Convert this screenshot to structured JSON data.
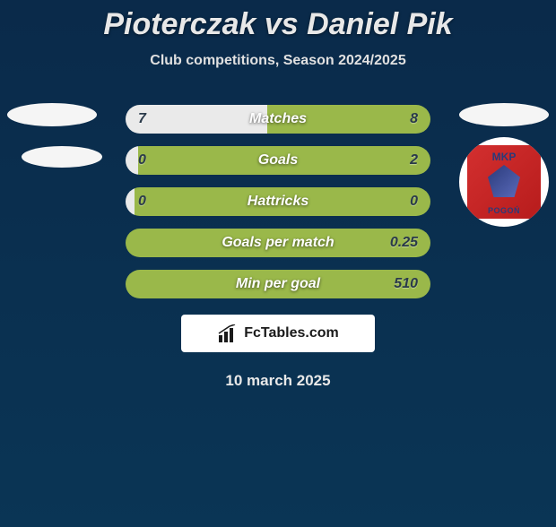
{
  "header": {
    "title": "Pioterczak vs Daniel Pik",
    "subtitle": "Club competitions, Season 2024/2025"
  },
  "badges": {
    "left": {
      "ellipse_color": "#f5f5f5"
    },
    "right": {
      "ellipse_color": "#f5f5f5",
      "club_top": "MKP",
      "club_bottom": "POGOŃ",
      "club_bg": "#d32f2f",
      "club_text_color": "#2a3a7a"
    }
  },
  "stats": {
    "rows": [
      {
        "label": "Matches",
        "left": "7",
        "right": "8",
        "left_pct": 46.6
      },
      {
        "label": "Goals",
        "left": "0",
        "right": "2",
        "left_pct": 4
      },
      {
        "label": "Hattricks",
        "left": "0",
        "right": "0",
        "left_pct": 3
      },
      {
        "label": "Goals per match",
        "left": "",
        "right": "0.25",
        "left_pct": 0
      },
      {
        "label": "Min per goal",
        "left": "",
        "right": "510",
        "left_pct": 0
      }
    ],
    "bar_left_color": "#eaeaea",
    "bar_right_color": "#9ab84a",
    "label_color": "#ffffff",
    "value_color": "#2a3a4a"
  },
  "brand": {
    "text": "FcTables.com",
    "icon_color": "#1a1a1a"
  },
  "footer": {
    "date": "10 march 2025"
  },
  "colors": {
    "background_top": "#0a2a4a",
    "background_bottom": "#0a3555",
    "title_color": "#e8e8e8"
  },
  "typography": {
    "title_fontsize": 34,
    "subtitle_fontsize": 16,
    "stat_label_fontsize": 16,
    "date_fontsize": 17
  }
}
